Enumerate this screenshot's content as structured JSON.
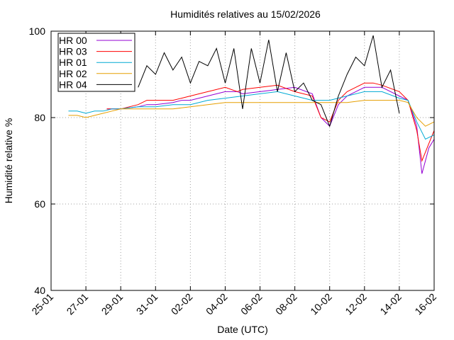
{
  "chart_data": {
    "type": "line",
    "title": "Humidités relatives  au 15/02/2026",
    "xlabel": "Date (UTC)",
    "ylabel": "Humidité relative %",
    "xlim": [
      0,
      22
    ],
    "ylim": [
      40,
      100
    ],
    "x_ticks": [
      {
        "x": 0,
        "label": "25-01"
      },
      {
        "x": 2,
        "label": "27-01"
      },
      {
        "x": 4,
        "label": "29-01"
      },
      {
        "x": 6,
        "label": "31-01"
      },
      {
        "x": 8,
        "label": "02-02"
      },
      {
        "x": 10,
        "label": "04-02"
      },
      {
        "x": 12,
        "label": "06-02"
      },
      {
        "x": 14,
        "label": "08-02"
      },
      {
        "x": 16,
        "label": "10-02"
      },
      {
        "x": 18,
        "label": "12-02"
      },
      {
        "x": 20,
        "label": "14-02"
      },
      {
        "x": 22,
        "label": "16-02"
      }
    ],
    "y_ticks": [
      {
        "y": 40,
        "label": "40"
      },
      {
        "y": 60,
        "label": "60"
      },
      {
        "y": 80,
        "label": "80"
      },
      {
        "y": 100,
        "label": "100"
      }
    ],
    "grid": true,
    "legend_position": "top-left",
    "series": [
      {
        "name": "HR 00",
        "color": "#9400d3",
        "x": [
          3.2,
          4,
          5,
          5.5,
          6,
          7,
          7.5,
          8,
          9,
          10,
          10.7,
          11,
          12,
          13,
          14,
          15,
          15.5,
          16,
          16.5,
          17,
          17.5,
          18,
          18.5,
          19,
          20,
          20.5,
          21,
          21.3,
          21.7,
          22
        ],
        "y": [
          82,
          82,
          82.5,
          83,
          83,
          83.5,
          84,
          84,
          85,
          86,
          86,
          85.5,
          86,
          86.5,
          87,
          85.5,
          80,
          78,
          83,
          85,
          86,
          87,
          87,
          87,
          85,
          84,
          78,
          67,
          73,
          75
        ]
      },
      {
        "name": "HR 03",
        "color": "#ff0000",
        "x": [
          3.2,
          4,
          5,
          5.5,
          6,
          7,
          7.5,
          8,
          9,
          10,
          10.7,
          11,
          12,
          13,
          14,
          15,
          15.5,
          16,
          16.5,
          17,
          17.5,
          18,
          18.5,
          19,
          20,
          20.5,
          21,
          21.3,
          21.7,
          22
        ],
        "y": [
          82,
          82,
          83,
          84,
          84,
          84,
          84.5,
          85,
          86,
          87,
          86,
          86.5,
          87,
          87.5,
          86,
          85,
          80,
          79,
          84,
          86,
          87,
          88,
          88,
          87.5,
          86,
          84,
          77,
          70,
          74,
          77
        ]
      },
      {
        "name": "HR 01",
        "color": "#00aad4",
        "x": [
          1,
          1.5,
          2,
          2.5,
          3,
          3.5,
          4,
          5,
          6,
          7,
          8,
          9,
          10,
          11,
          12,
          13,
          14,
          15,
          16,
          17,
          18,
          19,
          20,
          20.5,
          21,
          21.5,
          22
        ],
        "y": [
          81.5,
          81.5,
          81,
          81.5,
          81.5,
          82,
          82,
          82.5,
          82.5,
          83,
          83,
          84,
          84.5,
          85,
          85.5,
          86,
          85,
          84,
          84,
          85,
          86,
          86,
          84.5,
          84,
          79,
          75,
          76
        ]
      },
      {
        "name": "HR 02",
        "color": "#e69f00",
        "x": [
          1,
          1.5,
          2,
          2.5,
          3,
          3.5,
          4,
          4.5,
          5,
          6,
          7,
          8,
          9,
          10,
          11,
          12,
          13,
          14,
          15,
          16,
          17,
          18,
          19,
          20,
          20.5,
          21,
          21.5,
          22
        ],
        "y": [
          80.5,
          80.5,
          80,
          80.5,
          81,
          81.5,
          82,
          82,
          82,
          82,
          82,
          82.5,
          83,
          83.5,
          83.5,
          83.5,
          83.5,
          83.5,
          83.5,
          83.5,
          83.5,
          84,
          84,
          84,
          83.5,
          80,
          78,
          79
        ]
      },
      {
        "name": "HR 04",
        "color": "#000000",
        "x": [
          5,
          5.5,
          6,
          6.5,
          7,
          7.5,
          8,
          8.5,
          9,
          9.5,
          10,
          10.5,
          11,
          11.5,
          12,
          12.5,
          13,
          13.5,
          14,
          14.5,
          15,
          15.5,
          16,
          16.5,
          17,
          17.5,
          18,
          18.5,
          19,
          19.5,
          20
        ],
        "y": [
          87,
          92,
          90,
          95,
          91,
          94,
          88,
          93,
          92,
          96,
          88,
          96,
          82,
          96,
          88,
          98,
          86,
          95,
          86,
          88,
          84,
          83,
          78,
          85,
          90,
          94,
          92,
          99,
          87,
          91,
          81
        ]
      }
    ]
  }
}
